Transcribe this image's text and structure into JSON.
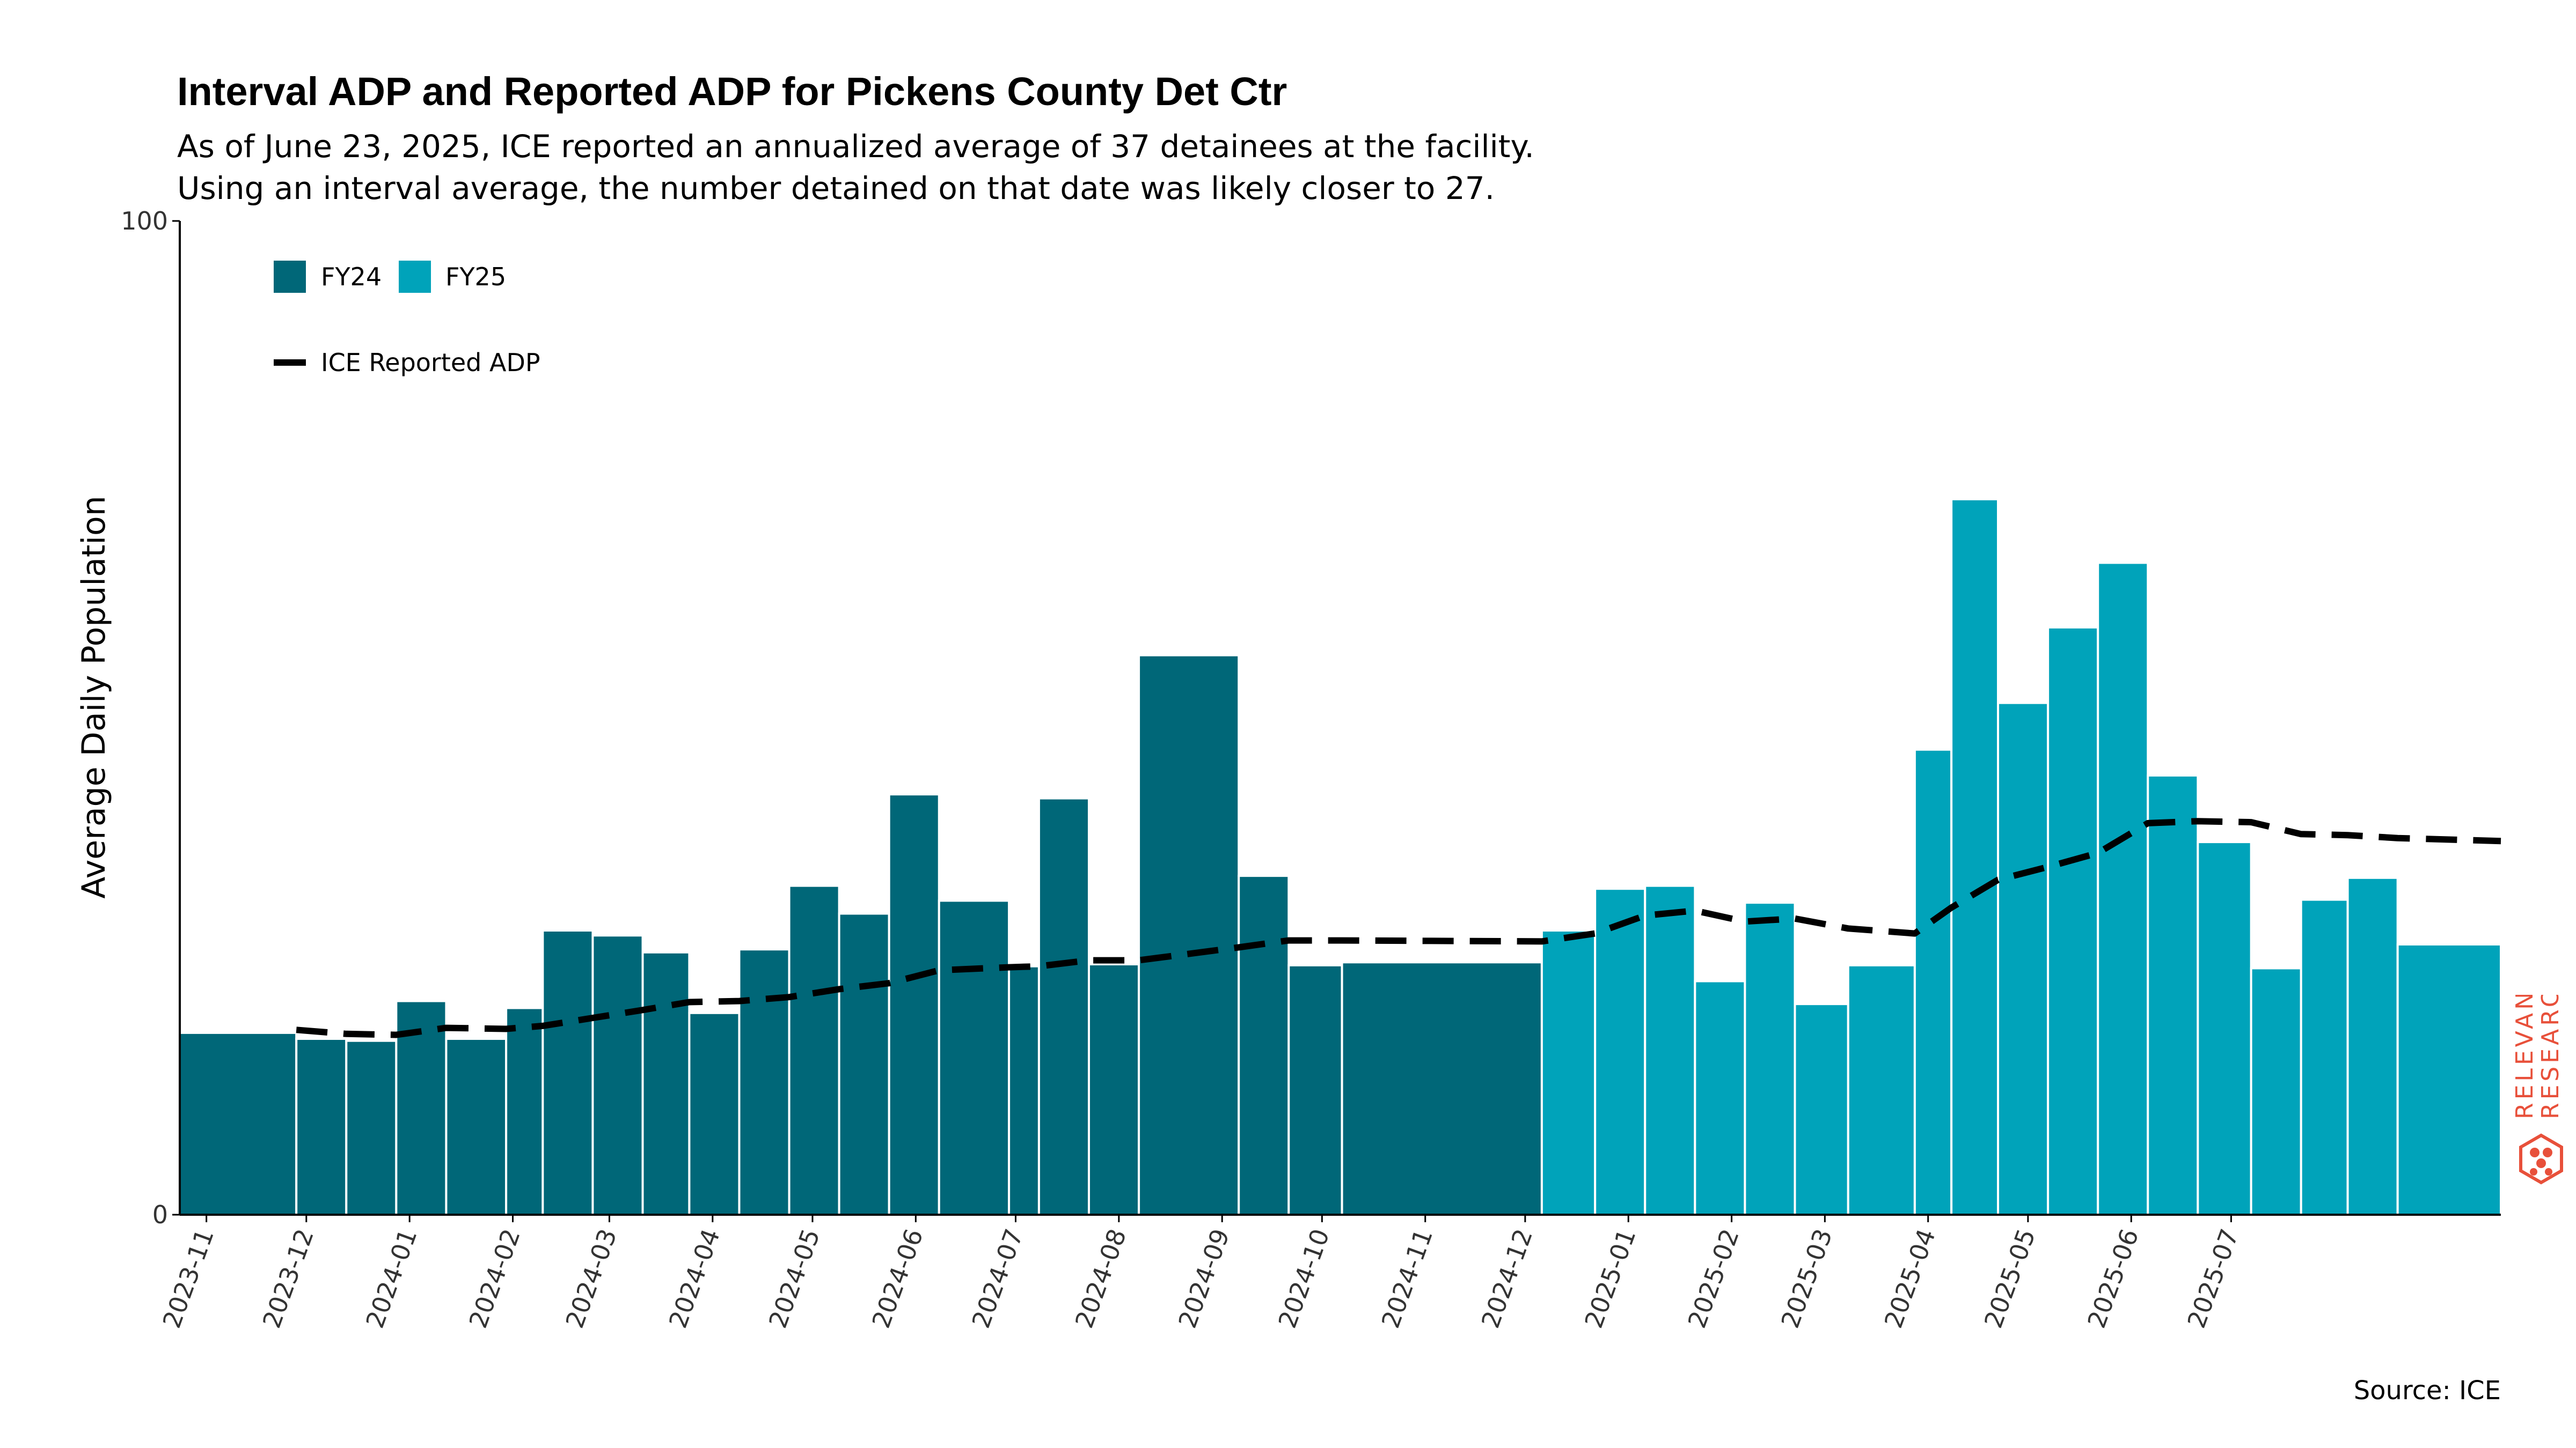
{
  "title": "Interval ADP and Reported ADP for Pickens County Det Ctr",
  "subtitle": [
    "As of June 23, 2025, ICE reported an annualized average of 37 detainees at the facility.",
    "Using an interval average, the number detained on that date was likely closer to 27."
  ],
  "source": "Source: ICE",
  "logo_text": [
    "RELEVANT",
    "RESEARCH"
  ],
  "colors": {
    "fy24": "#006778",
    "fy25": "#00A3BA",
    "line": "#000000",
    "logo": "#E8503A"
  },
  "chart_data": {
    "type": "bar",
    "ylabel": "Average Daily Population",
    "ylim": [
      0,
      100
    ],
    "yticks": [
      "0",
      "100"
    ],
    "xticks": [
      "2023-11",
      "2023-12",
      "2024-01",
      "2024-02",
      "2024-03",
      "2024-04",
      "2024-05",
      "2024-06",
      "2024-07",
      "2024-08",
      "2024-09",
      "2024-10",
      "2024-11",
      "2024-12",
      "2025-01",
      "2025-02",
      "2025-03",
      "2025-04",
      "2025-05",
      "2025-06",
      "2025-07"
    ],
    "legend": {
      "bars": [
        "FY24",
        "FY25"
      ],
      "line": "ICE Reported ADP",
      "position": "top-left"
    },
    "bars": [
      {
        "start": "2023-10-24",
        "end": "2023-11-28",
        "value": 18.3,
        "fy": "FY24"
      },
      {
        "start": "2023-11-28",
        "end": "2023-12-13",
        "value": 17.7,
        "fy": "FY24"
      },
      {
        "start": "2023-12-13",
        "end": "2023-12-28",
        "value": 17.5,
        "fy": "FY24"
      },
      {
        "start": "2023-12-28",
        "end": "2024-01-12",
        "value": 21.5,
        "fy": "FY24"
      },
      {
        "start": "2024-01-12",
        "end": "2024-01-30",
        "value": 17.7,
        "fy": "FY24"
      },
      {
        "start": "2024-01-30",
        "end": "2024-02-10",
        "value": 20.8,
        "fy": "FY24"
      },
      {
        "start": "2024-02-10",
        "end": "2024-02-25",
        "value": 28.6,
        "fy": "FY24"
      },
      {
        "start": "2024-02-25",
        "end": "2024-03-11",
        "value": 28.1,
        "fy": "FY24"
      },
      {
        "start": "2024-03-11",
        "end": "2024-03-25",
        "value": 26.4,
        "fy": "FY24"
      },
      {
        "start": "2024-03-25",
        "end": "2024-04-09",
        "value": 20.3,
        "fy": "FY24"
      },
      {
        "start": "2024-04-09",
        "end": "2024-04-24",
        "value": 26.7,
        "fy": "FY24"
      },
      {
        "start": "2024-04-24",
        "end": "2024-05-09",
        "value": 33.1,
        "fy": "FY24"
      },
      {
        "start": "2024-05-09",
        "end": "2024-05-24",
        "value": 30.3,
        "fy": "FY24"
      },
      {
        "start": "2024-05-24",
        "end": "2024-06-08",
        "value": 42.3,
        "fy": "FY24"
      },
      {
        "start": "2024-06-08",
        "end": "2024-06-29",
        "value": 31.6,
        "fy": "FY24"
      },
      {
        "start": "2024-06-29",
        "end": "2024-07-08",
        "value": 25.0,
        "fy": "FY24"
      },
      {
        "start": "2024-07-08",
        "end": "2024-07-23",
        "value": 41.9,
        "fy": "FY24"
      },
      {
        "start": "2024-07-23",
        "end": "2024-08-07",
        "value": 25.2,
        "fy": "FY24"
      },
      {
        "start": "2024-08-07",
        "end": "2024-09-06",
        "value": 56.3,
        "fy": "FY24"
      },
      {
        "start": "2024-09-06",
        "end": "2024-09-21",
        "value": 34.1,
        "fy": "FY24"
      },
      {
        "start": "2024-09-21",
        "end": "2024-10-07",
        "value": 25.1,
        "fy": "FY24"
      },
      {
        "start": "2024-10-07",
        "end": "2024-12-06",
        "value": 25.4,
        "fy": "FY24"
      },
      {
        "start": "2024-12-06",
        "end": "2024-12-22",
        "value": 28.6,
        "fy": "FY25"
      },
      {
        "start": "2024-12-22",
        "end": "2025-01-06",
        "value": 32.8,
        "fy": "FY25"
      },
      {
        "start": "2025-01-06",
        "end": "2025-01-21",
        "value": 33.1,
        "fy": "FY25"
      },
      {
        "start": "2025-01-21",
        "end": "2025-02-05",
        "value": 23.5,
        "fy": "FY25"
      },
      {
        "start": "2025-02-05",
        "end": "2025-02-20",
        "value": 31.4,
        "fy": "FY25"
      },
      {
        "start": "2025-02-20",
        "end": "2025-03-08",
        "value": 21.2,
        "fy": "FY25"
      },
      {
        "start": "2025-03-08",
        "end": "2025-03-28",
        "value": 25.1,
        "fy": "FY25"
      },
      {
        "start": "2025-03-28",
        "end": "2025-04-08",
        "value": 46.8,
        "fy": "FY25"
      },
      {
        "start": "2025-04-08",
        "end": "2025-04-22",
        "value": 72.0,
        "fy": "FY25"
      },
      {
        "start": "2025-04-22",
        "end": "2025-05-07",
        "value": 51.5,
        "fy": "FY25"
      },
      {
        "start": "2025-05-07",
        "end": "2025-05-22",
        "value": 59.1,
        "fy": "FY25"
      },
      {
        "start": "2025-05-22",
        "end": "2025-06-06",
        "value": 65.6,
        "fy": "FY25"
      },
      {
        "start": "2025-06-06",
        "end": "2025-06-21",
        "value": 44.2,
        "fy": "FY25"
      },
      {
        "start": "2025-06-21",
        "end": "2025-07-07",
        "value": 37.5,
        "fy": "FY25"
      },
      {
        "start": "2025-07-07",
        "end": "2025-07-22",
        "value": 24.8,
        "fy": "FY25"
      },
      {
        "start": "2025-07-22",
        "end": "2025-08-05",
        "value": 31.7,
        "fy": "FY25"
      },
      {
        "start": "2025-08-05",
        "end": "2025-08-20",
        "value": 33.9,
        "fy": "FY25"
      },
      {
        "start": "2025-08-20",
        "end": "2025-09-20",
        "value": 27.2,
        "fy": "FY25"
      }
    ],
    "line": {
      "name": "ICE Reported ADP",
      "points": [
        [
          "2023-11-28",
          18.6
        ],
        [
          "2023-12-13",
          18.2
        ],
        [
          "2023-12-28",
          18.1
        ],
        [
          "2024-01-12",
          18.8
        ],
        [
          "2024-01-30",
          18.7
        ],
        [
          "2024-02-10",
          19.0
        ],
        [
          "2024-02-25",
          19.8
        ],
        [
          "2024-03-11",
          20.6
        ],
        [
          "2024-03-25",
          21.4
        ],
        [
          "2024-04-09",
          21.5
        ],
        [
          "2024-04-24",
          21.9
        ],
        [
          "2024-05-09",
          22.7
        ],
        [
          "2024-05-24",
          23.3
        ],
        [
          "2024-06-08",
          24.6
        ],
        [
          "2024-06-29",
          24.9
        ],
        [
          "2024-07-08",
          25.0
        ],
        [
          "2024-07-23",
          25.6
        ],
        [
          "2024-08-07",
          25.6
        ],
        [
          "2024-09-06",
          26.9
        ],
        [
          "2024-09-21",
          27.6
        ],
        [
          "2024-10-07",
          27.6
        ],
        [
          "2024-12-06",
          27.5
        ],
        [
          "2024-12-22",
          28.3
        ],
        [
          "2025-01-06",
          30.1
        ],
        [
          "2025-01-21",
          30.6
        ],
        [
          "2025-02-05",
          29.5
        ],
        [
          "2025-02-20",
          29.8
        ],
        [
          "2025-03-08",
          28.8
        ],
        [
          "2025-03-28",
          28.3
        ],
        [
          "2025-04-08",
          30.9
        ],
        [
          "2025-04-22",
          33.7
        ],
        [
          "2025-05-07",
          35.0
        ],
        [
          "2025-05-22",
          36.4
        ],
        [
          "2025-06-06",
          39.4
        ],
        [
          "2025-06-21",
          39.6
        ],
        [
          "2025-07-07",
          39.5
        ],
        [
          "2025-07-22",
          38.3
        ],
        [
          "2025-08-05",
          38.2
        ],
        [
          "2025-08-20",
          37.9
        ],
        [
          "2025-09-20",
          37.6
        ]
      ]
    }
  }
}
